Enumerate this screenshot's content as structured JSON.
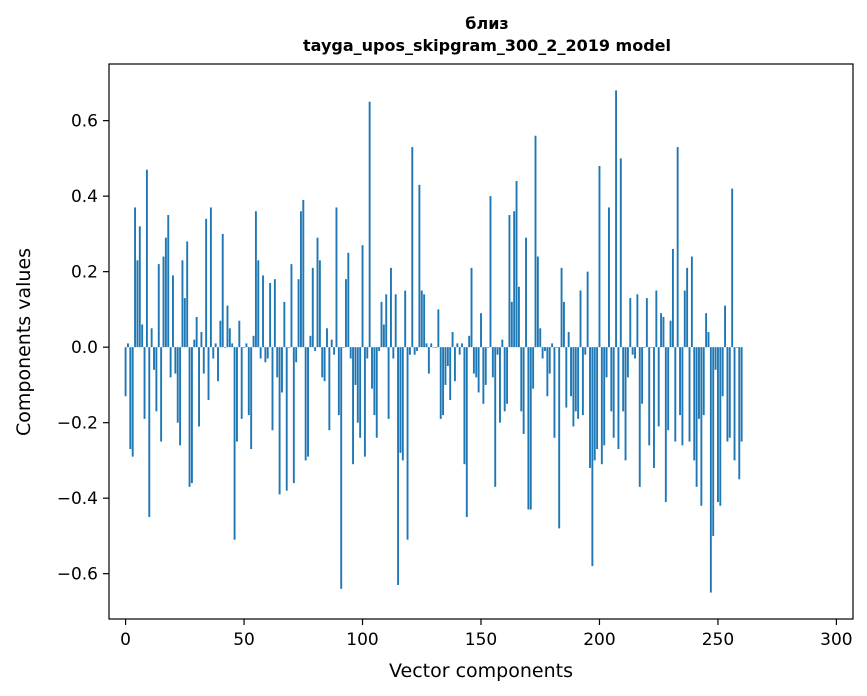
{
  "chart_data": {
    "type": "bar",
    "title": "близ",
    "subtitle": "tayga_upos_skipgram_300_2_2019 model",
    "xlabel": "Vector components",
    "ylabel": "Components values",
    "xlim": [
      -7,
      307
    ],
    "ylim": [
      -0.72,
      0.75
    ],
    "xticks": [
      0,
      50,
      100,
      150,
      200,
      250,
      300
    ],
    "xtick_labels": [
      "0",
      "50",
      "100",
      "150",
      "200",
      "250",
      "300"
    ],
    "yticks": [
      -0.6,
      -0.4,
      -0.2,
      0.0,
      0.2,
      0.4,
      0.6
    ],
    "ytick_labels": [
      "−0.6",
      "−0.4",
      "−0.2",
      "0.0",
      "0.2",
      "0.4",
      "0.6"
    ],
    "grid": false,
    "color": "#1f77b4",
    "values": [
      -0.13,
      0.01,
      -0.27,
      -0.29,
      0.37,
      0.23,
      0.32,
      0.06,
      -0.19,
      0.47,
      -0.45,
      0.05,
      -0.06,
      -0.17,
      0.22,
      -0.25,
      0.24,
      0.29,
      0.35,
      -0.08,
      0.19,
      -0.07,
      -0.2,
      -0.26,
      0.23,
      0.13,
      0.28,
      -0.37,
      -0.36,
      0.02,
      0.08,
      -0.21,
      0.04,
      -0.07,
      0.34,
      -0.14,
      0.37,
      -0.03,
      0.01,
      -0.09,
      0.07,
      0.3,
      0.0,
      0.11,
      0.05,
      0.01,
      -0.51,
      -0.25,
      0.07,
      -0.19,
      0.0,
      0.01,
      -0.18,
      -0.27,
      0.03,
      0.36,
      0.23,
      -0.03,
      0.19,
      -0.04,
      -0.03,
      0.17,
      -0.22,
      0.18,
      -0.08,
      -0.39,
      -0.12,
      0.12,
      -0.38,
      0.0,
      0.22,
      -0.36,
      -0.04,
      0.18,
      0.36,
      0.39,
      -0.3,
      -0.29,
      0.03,
      0.21,
      -0.01,
      0.29,
      0.23,
      -0.08,
      -0.09,
      0.05,
      -0.22,
      0.02,
      -0.02,
      0.37,
      -0.18,
      -0.64,
      0.0,
      0.18,
      0.25,
      -0.03,
      -0.31,
      -0.1,
      -0.2,
      -0.24,
      0.27,
      -0.29,
      -0.03,
      0.65,
      -0.11,
      -0.18,
      -0.24,
      -0.01,
      0.12,
      0.06,
      0.14,
      -0.19,
      0.21,
      -0.03,
      0.14,
      -0.63,
      -0.28,
      -0.3,
      0.15,
      -0.51,
      -0.02,
      0.53,
      -0.02,
      -0.01,
      0.43,
      0.15,
      0.14,
      0.01,
      -0.07,
      0.01,
      0.0,
      0.0,
      0.1,
      -0.19,
      -0.18,
      -0.1,
      -0.05,
      -0.14,
      0.04,
      -0.09,
      0.01,
      -0.02,
      0.01,
      -0.31,
      -0.45,
      0.03,
      0.21,
      -0.07,
      -0.08,
      -0.12,
      0.09,
      -0.15,
      -0.1,
      0.0,
      0.4,
      -0.08,
      -0.37,
      -0.02,
      -0.2,
      0.02,
      -0.17,
      -0.15,
      0.35,
      0.12,
      0.36,
      0.44,
      0.16,
      -0.17,
      -0.23,
      0.29,
      -0.43,
      -0.43,
      -0.11,
      0.56,
      0.24,
      0.05,
      -0.03,
      -0.01,
      -0.13,
      -0.07,
      0.01,
      -0.24,
      0.0,
      -0.48,
      0.21,
      0.12,
      -0.16,
      0.04,
      -0.13,
      -0.21,
      -0.17,
      -0.19,
      0.15,
      -0.18,
      -0.02,
      0.2,
      -0.32,
      -0.58,
      -0.3,
      -0.27,
      0.48,
      -0.31,
      -0.26,
      -0.08,
      0.37,
      -0.17,
      -0.24,
      0.68,
      -0.27,
      0.5,
      -0.17,
      -0.3,
      -0.08,
      0.13,
      -0.02,
      -0.03,
      0.14,
      -0.37,
      -0.15,
      0.0,
      0.13,
      -0.26,
      0.0,
      -0.32,
      0.15,
      -0.21,
      0.09,
      0.08,
      -0.41,
      -0.22,
      0.07,
      0.26,
      -0.25,
      0.53,
      -0.18,
      -0.26,
      0.15,
      0.21,
      -0.25,
      0.24,
      -0.3,
      -0.37,
      -0.19,
      -0.42,
      -0.18,
      0.09,
      0.04,
      -0.65,
      -0.5,
      -0.06,
      -0.41,
      -0.42,
      -0.13,
      0.11,
      -0.25,
      -0.24,
      0.42,
      -0.3,
      0.0,
      -0.35,
      -0.25
    ]
  }
}
